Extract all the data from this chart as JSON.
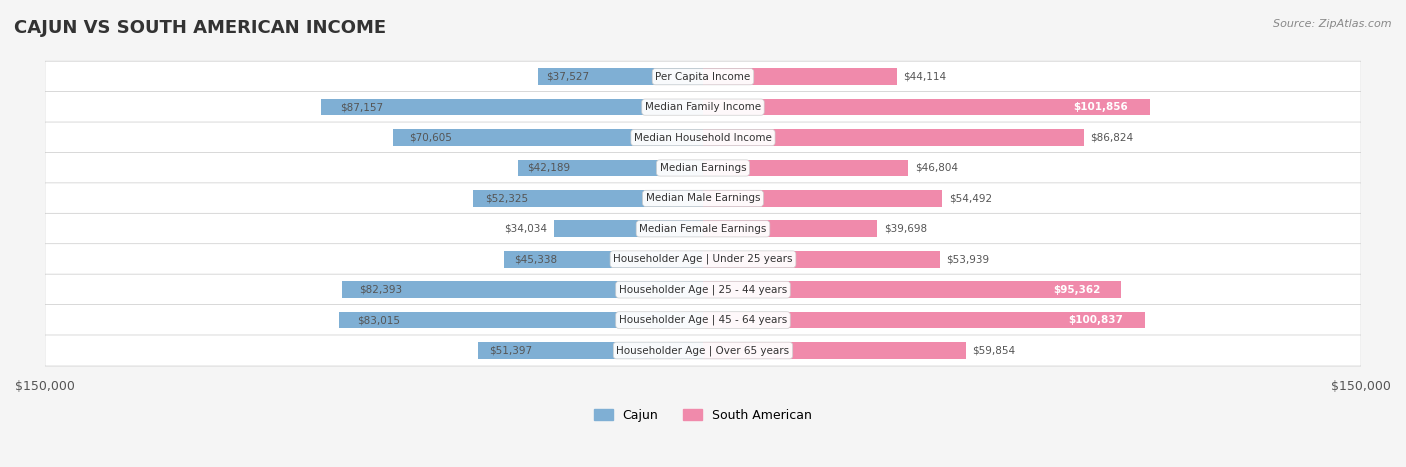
{
  "title": "CAJUN VS SOUTH AMERICAN INCOME",
  "source": "Source: ZipAtlas.com",
  "max_value": 150000,
  "categories": [
    "Per Capita Income",
    "Median Family Income",
    "Median Household Income",
    "Median Earnings",
    "Median Male Earnings",
    "Median Female Earnings",
    "Householder Age | Under 25 years",
    "Householder Age | 25 - 44 years",
    "Householder Age | 45 - 64 years",
    "Householder Age | Over 65 years"
  ],
  "cajun_values": [
    37527,
    87157,
    70605,
    42189,
    52325,
    34034,
    45338,
    82393,
    83015,
    51397
  ],
  "south_american_values": [
    44114,
    101856,
    86824,
    46804,
    54492,
    39698,
    53939,
    95362,
    100837,
    59854
  ],
  "cajun_color": "#7fafd4",
  "cajun_color_dark": "#5b8fc4",
  "south_american_color": "#f08aab",
  "south_american_color_dark": "#e8608f",
  "bar_height": 0.55,
  "background_color": "#f5f5f5",
  "row_bg_color": "#ffffff",
  "label_color_dark": "#ffffff",
  "label_color_light": "#555555",
  "legend_cajun": "Cajun",
  "legend_south_american": "South American"
}
